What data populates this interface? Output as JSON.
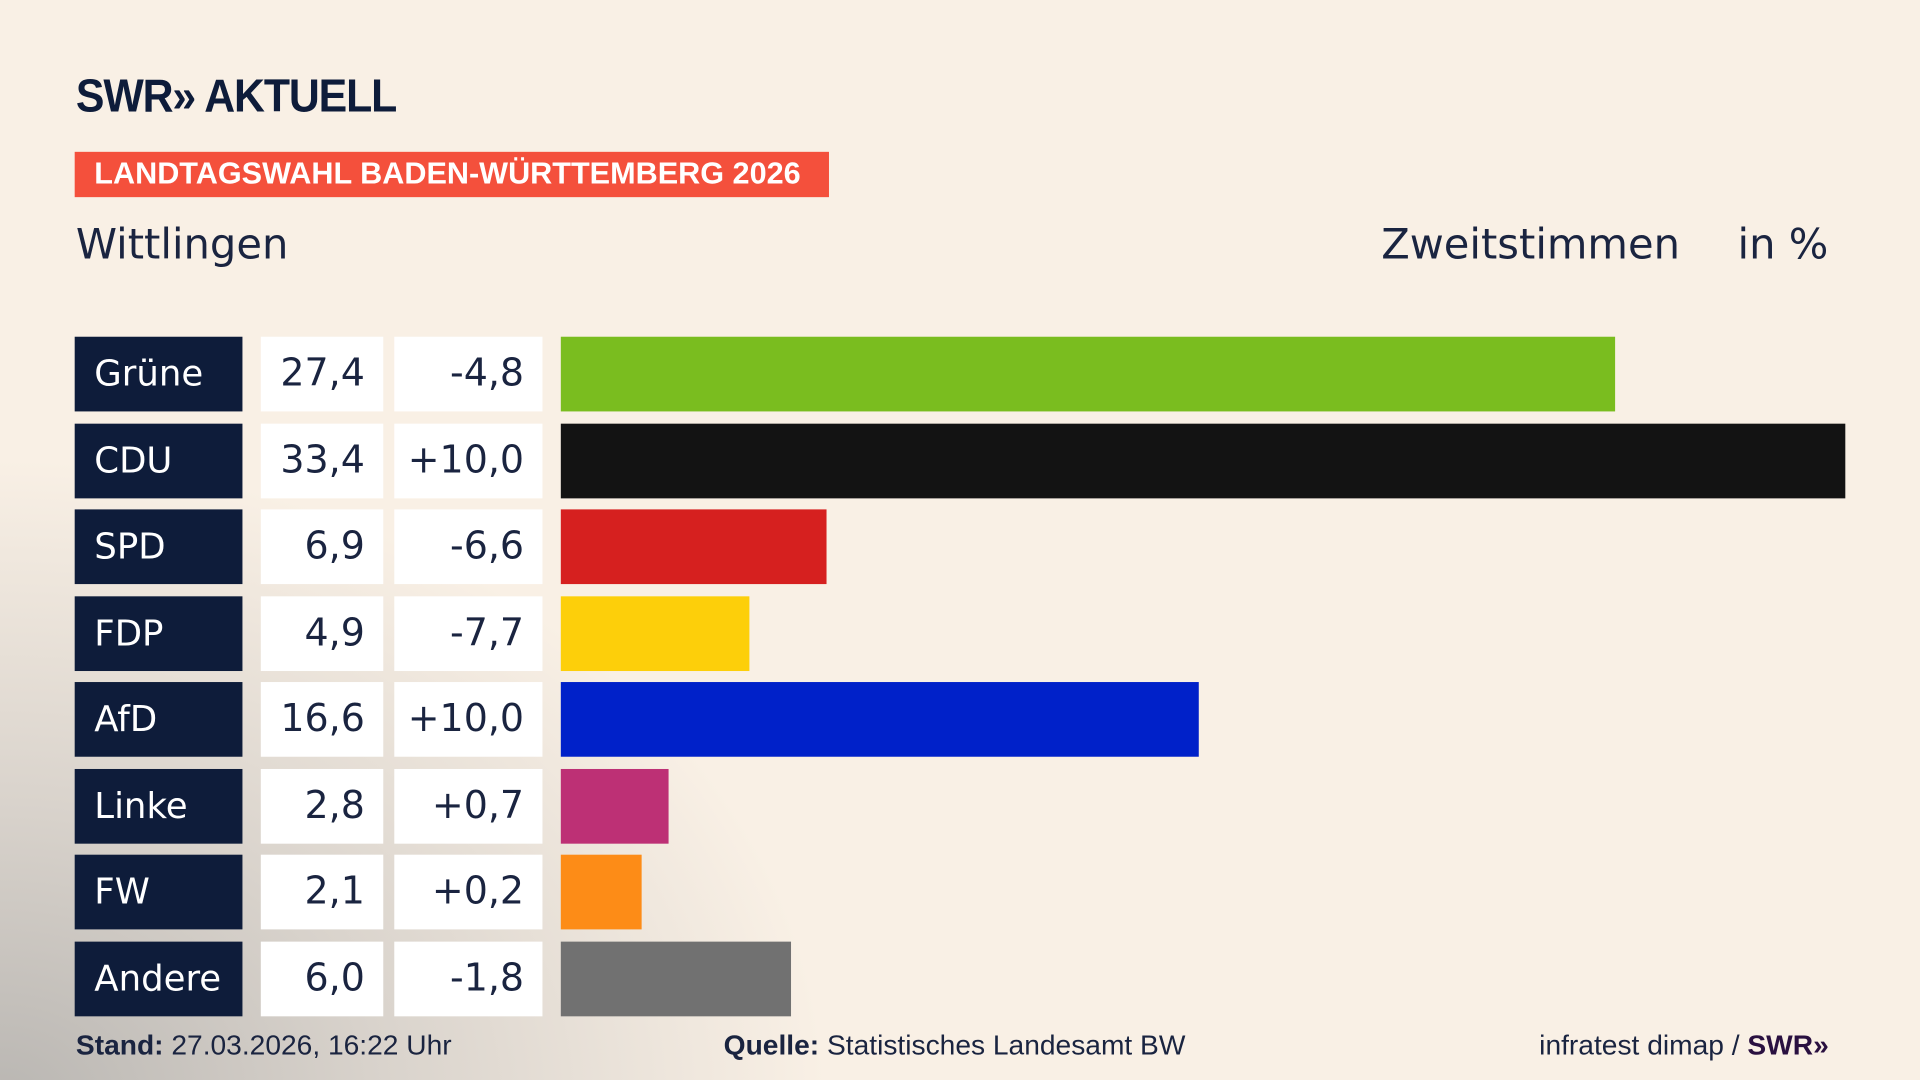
{
  "header": {
    "logo": "SWR» AKTUELL",
    "banner": "LANDTAGSWAHL BADEN-WÜRTTEMBERG 2026",
    "place": "Wittlingen",
    "subtitle": "Zweitstimmen",
    "unit": "in %"
  },
  "chart_data": {
    "type": "bar",
    "orientation": "horizontal",
    "title": "Zweitstimmen",
    "unit": "in %",
    "categories": [
      "Grüne",
      "CDU",
      "SPD",
      "FDP",
      "AfD",
      "Linke",
      "FW",
      "Andere"
    ],
    "values": [
      27.4,
      33.4,
      6.9,
      4.9,
      16.6,
      2.8,
      2.1,
      6.0
    ],
    "value_labels": [
      "27,4",
      "33,4",
      "6,9",
      "4,9",
      "16,6",
      "2,8",
      "2,1",
      "6,0"
    ],
    "diff_labels": [
      "-4,8",
      "+10,0",
      "-6,6",
      "-7,7",
      "+10,0",
      "+0,7",
      "+0,2",
      "-1,8"
    ],
    "colors": [
      "#7abd1f",
      "#131313",
      "#d6201f",
      "#fdcf0a",
      "#0021c9",
      "#bd3075",
      "#fd8c17",
      "#717171"
    ],
    "grid": false
  },
  "footer": {
    "stand_label": "Stand:",
    "stand_value": "27.03.2026, 16:22 Uhr",
    "source_label": "Quelle:",
    "source_value": "Statistisches Landesamt BW",
    "credit": "infratest dimap /",
    "credit_logo": "SWR»"
  }
}
